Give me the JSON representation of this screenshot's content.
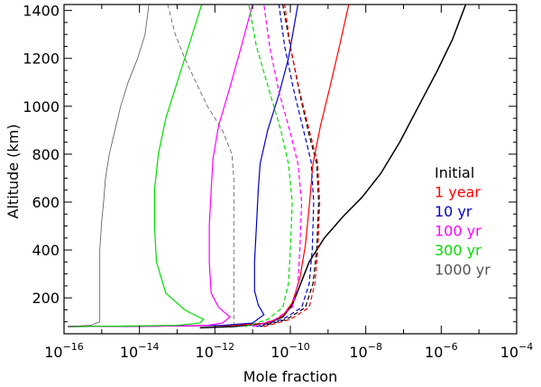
{
  "chart_data": {
    "type": "line",
    "xlabel": "Mole fraction",
    "ylabel": "Altitude (km)",
    "xscale": "log",
    "xlim_exp": [
      -16,
      -4
    ],
    "ylim": [
      50,
      1425
    ],
    "x_ticks": [
      {
        "base": "10",
        "exp": "−16",
        "e": -16
      },
      {
        "base": "10",
        "exp": "−14",
        "e": -14
      },
      {
        "base": "10",
        "exp": "−12",
        "e": -12
      },
      {
        "base": "10",
        "exp": "−10",
        "e": -10
      },
      {
        "base": "10",
        "exp": "−8",
        "e": -8
      },
      {
        "base": "10",
        "exp": "−6",
        "e": -6
      },
      {
        "base": "10",
        "exp": "−4",
        "e": -4
      }
    ],
    "y_ticks": [
      {
        "label": "200",
        "v": 200
      },
      {
        "label": "400",
        "v": 400
      },
      {
        "label": "600",
        "v": 600
      },
      {
        "label": "800",
        "v": 800
      },
      {
        "label": "1000",
        "v": 1000
      },
      {
        "label": "1200",
        "v": 1200
      },
      {
        "label": "1400",
        "v": 1400
      }
    ],
    "legend": {
      "position": "right",
      "entries": [
        {
          "label": "Initial",
          "color": "#000000"
        },
        {
          "label": "1 year",
          "color": "#ff0000"
        },
        {
          "label": "10 yr",
          "color": "#0000cc"
        },
        {
          "label": "100 yr",
          "color": "#ff00ff"
        },
        {
          "label": "300 yr",
          "color": "#00dd00"
        },
        {
          "label": "1000 yr",
          "color": "#555555"
        }
      ]
    },
    "series": [
      {
        "name": "Initial",
        "color": "#000000",
        "dash": "solid",
        "width": 1.5,
        "points": [
          [
            -12.4,
            75
          ],
          [
            -11.5,
            80
          ],
          [
            -10.6,
            95
          ],
          [
            -10.2,
            120
          ],
          [
            -9.95,
            170
          ],
          [
            -9.75,
            250
          ],
          [
            -9.5,
            350
          ],
          [
            -9.1,
            450
          ],
          [
            -8.6,
            540
          ],
          [
            -8.1,
            620
          ],
          [
            -7.6,
            720
          ],
          [
            -7.1,
            850
          ],
          [
            -6.6,
            1000
          ],
          [
            -6.1,
            1150
          ],
          [
            -5.7,
            1280
          ],
          [
            -5.35,
            1425
          ]
        ]
      },
      {
        "name": "Initial (dashed)",
        "color": "#000000",
        "dash": "dashed",
        "width": 1.2,
        "points": [
          [
            -10.8,
            80
          ],
          [
            -10.1,
            110
          ],
          [
            -9.6,
            160
          ],
          [
            -9.4,
            260
          ],
          [
            -9.3,
            400
          ],
          [
            -9.25,
            600
          ],
          [
            -9.3,
            760
          ],
          [
            -9.5,
            880
          ],
          [
            -9.75,
            1050
          ],
          [
            -10.0,
            1250
          ],
          [
            -10.2,
            1425
          ]
        ]
      },
      {
        "name": "1 year",
        "color": "#ff0000",
        "dash": "solid",
        "width": 1.2,
        "points": [
          [
            -15.9,
            80
          ],
          [
            -13.5,
            82
          ],
          [
            -11.5,
            85
          ],
          [
            -10.6,
            95
          ],
          [
            -10.2,
            125
          ],
          [
            -9.95,
            180
          ],
          [
            -9.75,
            280
          ],
          [
            -9.6,
            420
          ],
          [
            -9.5,
            580
          ],
          [
            -9.4,
            760
          ],
          [
            -9.2,
            920
          ],
          [
            -8.95,
            1080
          ],
          [
            -8.7,
            1250
          ],
          [
            -8.45,
            1425
          ]
        ]
      },
      {
        "name": "1 year (dashed)",
        "color": "#ff0000",
        "dash": "dashed",
        "width": 1.2,
        "points": [
          [
            -10.7,
            80
          ],
          [
            -10.0,
            110
          ],
          [
            -9.5,
            160
          ],
          [
            -9.35,
            260
          ],
          [
            -9.27,
            400
          ],
          [
            -9.22,
            600
          ],
          [
            -9.28,
            770
          ],
          [
            -9.5,
            900
          ],
          [
            -9.75,
            1060
          ],
          [
            -10.0,
            1250
          ],
          [
            -10.15,
            1425
          ]
        ]
      },
      {
        "name": "10 yr",
        "color": "#0000cc",
        "dash": "solid",
        "width": 1.2,
        "points": [
          [
            -15.9,
            80
          ],
          [
            -13.5,
            82
          ],
          [
            -11.8,
            85
          ],
          [
            -11.0,
            95
          ],
          [
            -10.7,
            130
          ],
          [
            -10.85,
            170
          ],
          [
            -10.95,
            230
          ],
          [
            -10.95,
            350
          ],
          [
            -10.9,
            500
          ],
          [
            -10.85,
            650
          ],
          [
            -10.8,
            760
          ],
          [
            -10.6,
            900
          ],
          [
            -10.3,
            1050
          ],
          [
            -10.05,
            1200
          ],
          [
            -9.8,
            1425
          ]
        ]
      },
      {
        "name": "10 yr (dashed)",
        "color": "#0000cc",
        "dash": "dashed",
        "width": 1.2,
        "points": [
          [
            -10.9,
            80
          ],
          [
            -10.2,
            110
          ],
          [
            -9.7,
            160
          ],
          [
            -9.5,
            260
          ],
          [
            -9.42,
            400
          ],
          [
            -9.38,
            600
          ],
          [
            -9.45,
            770
          ],
          [
            -9.65,
            900
          ],
          [
            -9.9,
            1060
          ],
          [
            -10.15,
            1250
          ],
          [
            -10.3,
            1425
          ]
        ]
      },
      {
        "name": "100 yr",
        "color": "#ff00ff",
        "dash": "solid",
        "width": 1.2,
        "points": [
          [
            -15.9,
            80
          ],
          [
            -13.5,
            82
          ],
          [
            -12.2,
            85
          ],
          [
            -11.8,
            95
          ],
          [
            -11.6,
            120
          ],
          [
            -11.9,
            160
          ],
          [
            -12.1,
            220
          ],
          [
            -12.15,
            350
          ],
          [
            -12.15,
            500
          ],
          [
            -12.1,
            650
          ],
          [
            -12.05,
            780
          ],
          [
            -11.9,
            920
          ],
          [
            -11.6,
            1080
          ],
          [
            -11.3,
            1250
          ],
          [
            -11.0,
            1425
          ]
        ]
      },
      {
        "name": "100 yr (dashed)",
        "color": "#ff00ff",
        "dash": "dashed",
        "width": 1.2,
        "points": [
          [
            -11.0,
            80
          ],
          [
            -10.4,
            110
          ],
          [
            -9.95,
            160
          ],
          [
            -9.8,
            260
          ],
          [
            -9.75,
            400
          ],
          [
            -9.7,
            600
          ],
          [
            -9.8,
            760
          ],
          [
            -10.0,
            890
          ],
          [
            -10.3,
            1060
          ],
          [
            -10.55,
            1250
          ],
          [
            -10.7,
            1425
          ]
        ]
      },
      {
        "name": "300 yr",
        "color": "#00dd00",
        "dash": "solid",
        "width": 1.2,
        "points": [
          [
            -15.9,
            80
          ],
          [
            -14.5,
            82
          ],
          [
            -13.0,
            85
          ],
          [
            -12.4,
            95
          ],
          [
            -12.3,
            110
          ],
          [
            -12.8,
            150
          ],
          [
            -13.3,
            220
          ],
          [
            -13.55,
            350
          ],
          [
            -13.6,
            500
          ],
          [
            -13.6,
            650
          ],
          [
            -13.5,
            800
          ],
          [
            -13.3,
            950
          ],
          [
            -13.0,
            1100
          ],
          [
            -12.7,
            1250
          ],
          [
            -12.35,
            1425
          ]
        ]
      },
      {
        "name": "300 yr (dashed)",
        "color": "#00dd00",
        "dash": "dashed",
        "width": 1.2,
        "points": [
          [
            -11.2,
            80
          ],
          [
            -10.6,
            110
          ],
          [
            -10.2,
            160
          ],
          [
            -10.05,
            260
          ],
          [
            -10.0,
            400
          ],
          [
            -9.95,
            600
          ],
          [
            -10.05,
            760
          ],
          [
            -10.25,
            900
          ],
          [
            -10.55,
            1060
          ],
          [
            -10.9,
            1250
          ],
          [
            -11.1,
            1425
          ]
        ]
      },
      {
        "name": "1000 yr",
        "color": "#555555",
        "dash": "solid",
        "width": 0.8,
        "points": [
          [
            -15.9,
            80
          ],
          [
            -15.3,
            85
          ],
          [
            -15.05,
            100
          ],
          [
            -15.05,
            150
          ],
          [
            -15.05,
            250
          ],
          [
            -15.05,
            400
          ],
          [
            -15.0,
            520
          ],
          [
            -14.95,
            600
          ],
          [
            -14.9,
            700
          ],
          [
            -14.8,
            800
          ],
          [
            -14.65,
            900
          ],
          [
            -14.5,
            1000
          ],
          [
            -14.3,
            1100
          ],
          [
            -14.05,
            1200
          ],
          [
            -13.85,
            1300
          ],
          [
            -13.75,
            1425
          ]
        ]
      },
      {
        "name": "1000 yr (dashed)",
        "color": "#555555",
        "dash": "dashed",
        "width": 0.8,
        "points": [
          [
            -11.5,
            80
          ],
          [
            -11.5,
            150
          ],
          [
            -11.5,
            300
          ],
          [
            -11.5,
            500
          ],
          [
            -11.5,
            700
          ],
          [
            -11.55,
            800
          ],
          [
            -11.8,
            900
          ],
          [
            -12.2,
            1000
          ],
          [
            -12.5,
            1100
          ],
          [
            -12.8,
            1200
          ],
          [
            -13.05,
            1300
          ],
          [
            -13.25,
            1425
          ]
        ]
      }
    ]
  }
}
